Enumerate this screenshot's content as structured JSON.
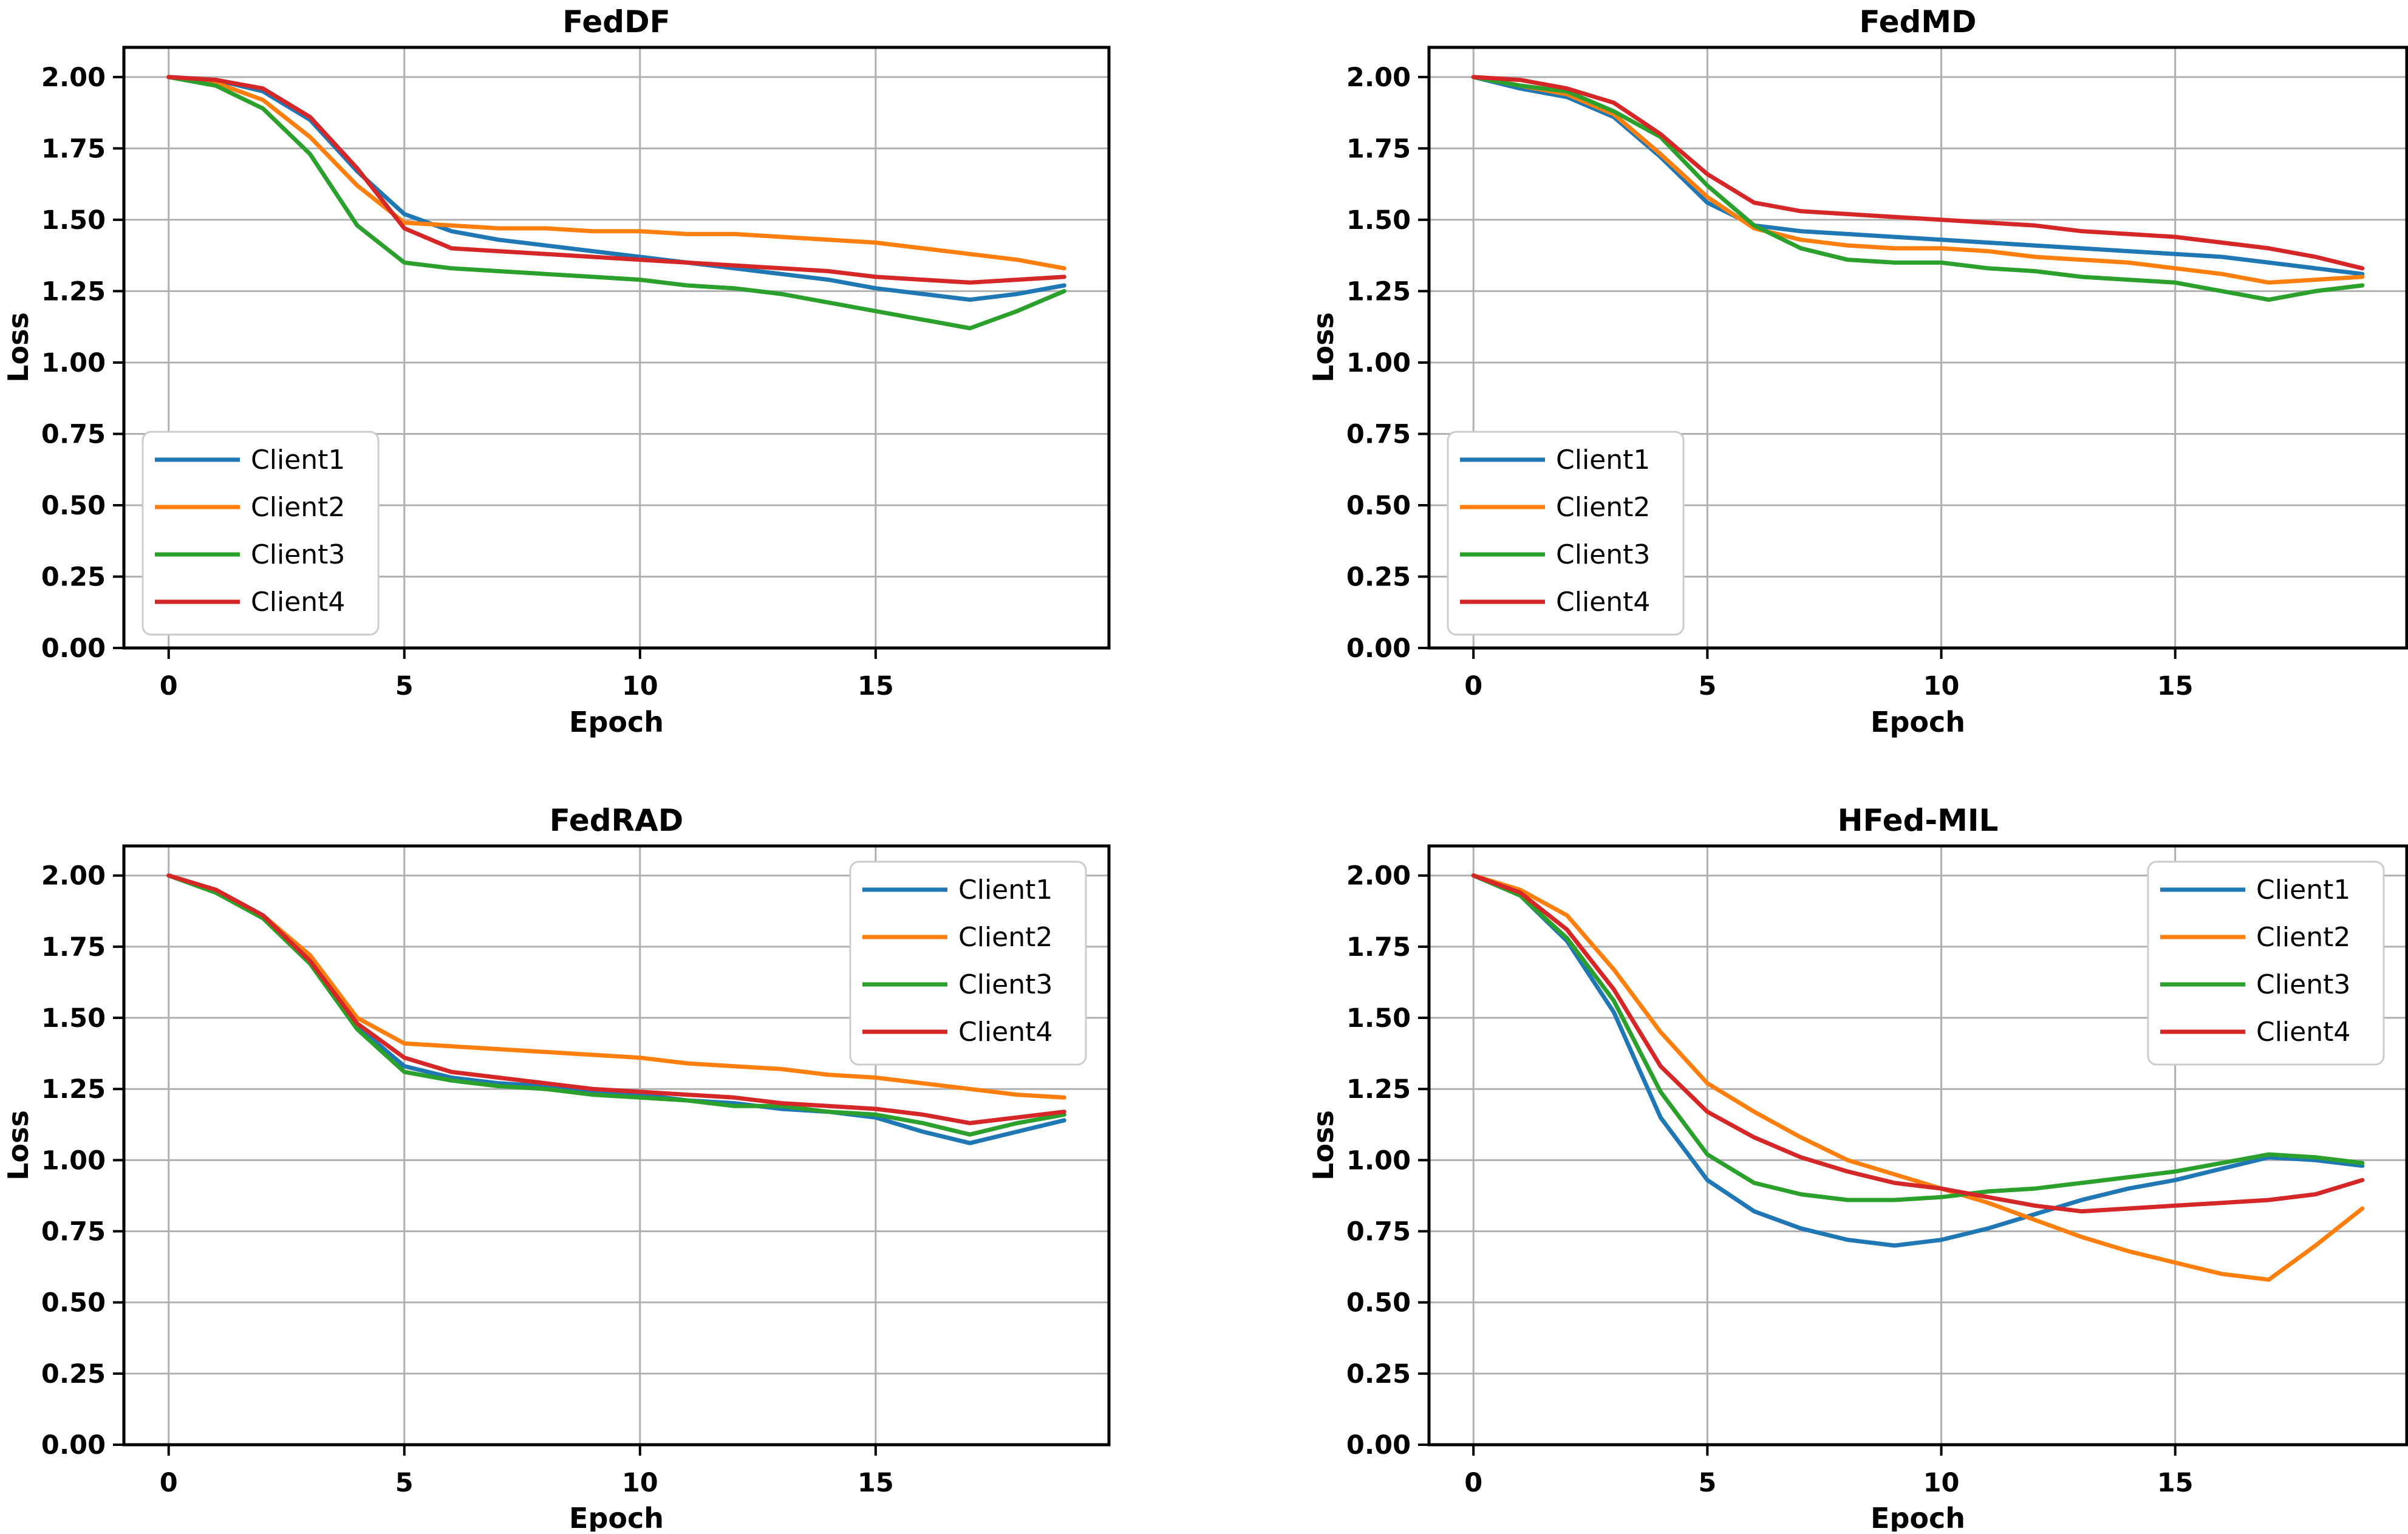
{
  "figure": {
    "background": "#ffffff",
    "grid_color": "#b0b0b0",
    "spine_color": "#000000",
    "legend_border_color": "#cccccc"
  },
  "axis": {
    "xlabel": "Epoch",
    "ylabel": "Loss",
    "x_tick_labels": [
      "0",
      "5",
      "10",
      "15"
    ],
    "x_tick_values": [
      0,
      5,
      10,
      15
    ],
    "y_tick_labels": [
      "2.00",
      "1.75",
      "1.50",
      "1.25",
      "1.00",
      "0.75",
      "0.50",
      "0.25",
      "0.00"
    ],
    "y_tick_values": [
      2.0,
      1.75,
      1.5,
      1.25,
      1.0,
      0.75,
      0.5,
      0.25,
      0.0
    ]
  },
  "chart_data": [
    {
      "type": "line",
      "title": "FedDF",
      "xlabel": "Epoch",
      "ylabel": "Loss",
      "x": [
        0,
        1,
        2,
        3,
        4,
        5,
        6,
        7,
        8,
        9,
        10,
        11,
        12,
        13,
        14,
        15,
        16,
        17,
        18,
        19
      ],
      "xlim": [
        -0.95,
        19.95
      ],
      "ylim": [
        0,
        2.104
      ],
      "grid": true,
      "legend_position": "lower left",
      "series": [
        {
          "name": "Client1",
          "color": "#1f77b4",
          "values": [
            2.0,
            1.99,
            1.95,
            1.85,
            1.67,
            1.52,
            1.46,
            1.43,
            1.41,
            1.39,
            1.37,
            1.35,
            1.33,
            1.31,
            1.29,
            1.26,
            1.24,
            1.22,
            1.24,
            1.27
          ]
        },
        {
          "name": "Client2",
          "color": "#ff7f0e",
          "values": [
            2.0,
            1.98,
            1.92,
            1.79,
            1.62,
            1.49,
            1.48,
            1.47,
            1.47,
            1.46,
            1.46,
            1.45,
            1.45,
            1.44,
            1.43,
            1.42,
            1.4,
            1.38,
            1.36,
            1.33
          ]
        },
        {
          "name": "Client3",
          "color": "#2ca02c",
          "values": [
            2.0,
            1.97,
            1.89,
            1.73,
            1.48,
            1.35,
            1.33,
            1.32,
            1.31,
            1.3,
            1.29,
            1.27,
            1.26,
            1.24,
            1.21,
            1.18,
            1.15,
            1.12,
            1.18,
            1.25
          ]
        },
        {
          "name": "Client4",
          "color": "#d62728",
          "values": [
            2.0,
            1.99,
            1.96,
            1.86,
            1.68,
            1.47,
            1.4,
            1.39,
            1.38,
            1.37,
            1.36,
            1.35,
            1.34,
            1.33,
            1.32,
            1.3,
            1.29,
            1.28,
            1.29,
            1.3
          ]
        }
      ]
    },
    {
      "type": "line",
      "title": "FedMD",
      "xlabel": "Epoch",
      "ylabel": "Loss",
      "x": [
        0,
        1,
        2,
        3,
        4,
        5,
        6,
        7,
        8,
        9,
        10,
        11,
        12,
        13,
        14,
        15,
        16,
        17,
        18,
        19
      ],
      "xlim": [
        -0.95,
        19.95
      ],
      "ylim": [
        0,
        2.104
      ],
      "grid": true,
      "legend_position": "lower left",
      "series": [
        {
          "name": "Client1",
          "color": "#1f77b4",
          "values": [
            2.0,
            1.96,
            1.93,
            1.86,
            1.72,
            1.56,
            1.48,
            1.46,
            1.45,
            1.44,
            1.43,
            1.42,
            1.41,
            1.4,
            1.39,
            1.38,
            1.37,
            1.35,
            1.33,
            1.31
          ]
        },
        {
          "name": "Client2",
          "color": "#ff7f0e",
          "values": [
            2.0,
            1.97,
            1.94,
            1.87,
            1.73,
            1.58,
            1.47,
            1.43,
            1.41,
            1.4,
            1.4,
            1.39,
            1.37,
            1.36,
            1.35,
            1.33,
            1.31,
            1.28,
            1.29,
            1.3
          ]
        },
        {
          "name": "Client3",
          "color": "#2ca02c",
          "values": [
            2.0,
            1.97,
            1.95,
            1.88,
            1.79,
            1.62,
            1.48,
            1.4,
            1.36,
            1.35,
            1.35,
            1.33,
            1.32,
            1.3,
            1.29,
            1.28,
            1.25,
            1.22,
            1.25,
            1.27
          ]
        },
        {
          "name": "Client4",
          "color": "#d62728",
          "values": [
            2.0,
            1.99,
            1.96,
            1.91,
            1.8,
            1.66,
            1.56,
            1.53,
            1.52,
            1.51,
            1.5,
            1.49,
            1.48,
            1.46,
            1.45,
            1.44,
            1.42,
            1.4,
            1.37,
            1.33
          ]
        }
      ]
    },
    {
      "type": "line",
      "title": "FedRAD",
      "xlabel": "Epoch",
      "ylabel": "Loss",
      "x": [
        0,
        1,
        2,
        3,
        4,
        5,
        6,
        7,
        8,
        9,
        10,
        11,
        12,
        13,
        14,
        15,
        16,
        17,
        18,
        19
      ],
      "xlim": [
        -0.95,
        19.95
      ],
      "ylim": [
        0,
        2.104
      ],
      "grid": true,
      "legend_position": "upper right",
      "series": [
        {
          "name": "Client1",
          "color": "#1f77b4",
          "values": [
            2.0,
            1.95,
            1.86,
            1.7,
            1.47,
            1.33,
            1.29,
            1.27,
            1.26,
            1.24,
            1.23,
            1.21,
            1.2,
            1.18,
            1.17,
            1.15,
            1.1,
            1.06,
            1.1,
            1.14
          ]
        },
        {
          "name": "Client2",
          "color": "#ff7f0e",
          "values": [
            2.0,
            1.95,
            1.86,
            1.72,
            1.5,
            1.41,
            1.4,
            1.39,
            1.38,
            1.37,
            1.36,
            1.34,
            1.33,
            1.32,
            1.3,
            1.29,
            1.27,
            1.25,
            1.23,
            1.22
          ]
        },
        {
          "name": "Client3",
          "color": "#2ca02c",
          "values": [
            2.0,
            1.94,
            1.85,
            1.69,
            1.46,
            1.31,
            1.28,
            1.26,
            1.25,
            1.23,
            1.22,
            1.21,
            1.19,
            1.19,
            1.17,
            1.16,
            1.13,
            1.09,
            1.13,
            1.16
          ]
        },
        {
          "name": "Client4",
          "color": "#d62728",
          "values": [
            2.0,
            1.95,
            1.86,
            1.7,
            1.48,
            1.36,
            1.31,
            1.29,
            1.27,
            1.25,
            1.24,
            1.23,
            1.22,
            1.2,
            1.19,
            1.18,
            1.16,
            1.13,
            1.15,
            1.17
          ]
        }
      ]
    },
    {
      "type": "line",
      "title": "HFed-MIL",
      "xlabel": "Epoch",
      "ylabel": "Loss",
      "x": [
        0,
        1,
        2,
        3,
        4,
        5,
        6,
        7,
        8,
        9,
        10,
        11,
        12,
        13,
        14,
        15,
        16,
        17,
        18,
        19
      ],
      "xlim": [
        -0.95,
        19.95
      ],
      "ylim": [
        0,
        2.104
      ],
      "grid": true,
      "legend_position": "upper right",
      "series": [
        {
          "name": "Client1",
          "color": "#1f77b4",
          "values": [
            2.0,
            1.93,
            1.77,
            1.52,
            1.15,
            0.93,
            0.82,
            0.76,
            0.72,
            0.7,
            0.72,
            0.76,
            0.81,
            0.86,
            0.9,
            0.93,
            0.97,
            1.01,
            1.0,
            0.98
          ]
        },
        {
          "name": "Client2",
          "color": "#ff7f0e",
          "values": [
            2.0,
            1.95,
            1.86,
            1.67,
            1.45,
            1.27,
            1.17,
            1.08,
            1.0,
            0.95,
            0.9,
            0.85,
            0.79,
            0.73,
            0.68,
            0.64,
            0.6,
            0.58,
            0.7,
            0.83
          ]
        },
        {
          "name": "Client3",
          "color": "#2ca02c",
          "values": [
            2.0,
            1.93,
            1.78,
            1.56,
            1.24,
            1.02,
            0.92,
            0.88,
            0.86,
            0.86,
            0.87,
            0.89,
            0.9,
            0.92,
            0.94,
            0.96,
            0.99,
            1.02,
            1.01,
            0.99
          ]
        },
        {
          "name": "Client4",
          "color": "#d62728",
          "values": [
            2.0,
            1.94,
            1.81,
            1.6,
            1.33,
            1.17,
            1.08,
            1.01,
            0.96,
            0.92,
            0.9,
            0.87,
            0.84,
            0.82,
            0.83,
            0.84,
            0.85,
            0.86,
            0.88,
            0.93
          ]
        }
      ]
    }
  ]
}
